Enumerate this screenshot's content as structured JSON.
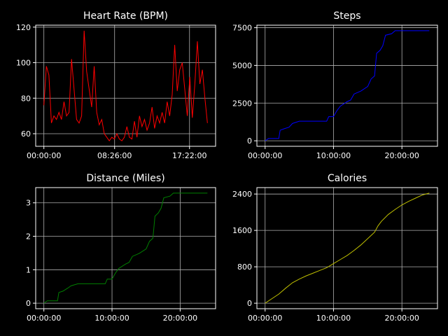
{
  "chart_data": [
    {
      "type": "line",
      "title": "Heart Rate (BPM)",
      "color": "#ff0000",
      "grid": true,
      "x": [
        0,
        0.3,
        0.6,
        0.9,
        1.2,
        1.5,
        1.8,
        2.1,
        2.4,
        2.7,
        3.0,
        3.3,
        3.6,
        3.9,
        4.2,
        4.5,
        4.8,
        5.1,
        5.4,
        5.7,
        6.0,
        6.3,
        6.6,
        6.9,
        7.2,
        7.5,
        7.8,
        8.1,
        8.4,
        8.7,
        9.0,
        9.3,
        9.6,
        9.9,
        10.2,
        10.5,
        10.8,
        11.1,
        11.4,
        11.7,
        12.0,
        12.3,
        12.6,
        12.9,
        13.2,
        13.5,
        13.8,
        14.1,
        14.4,
        14.7,
        15.0,
        15.3,
        15.6,
        15.9,
        16.2,
        16.5,
        16.8,
        17.1,
        17.4,
        17.7,
        18.0,
        18.3,
        18.6,
        18.9,
        19.2,
        19.5
      ],
      "values": [
        76,
        98,
        93,
        66,
        70,
        68,
        72,
        68,
        78,
        70,
        72,
        102,
        85,
        68,
        66,
        70,
        118,
        95,
        85,
        75,
        98,
        72,
        65,
        68,
        60,
        58,
        56,
        58,
        57,
        60,
        57,
        56,
        58,
        64,
        58,
        57,
        67,
        58,
        70,
        64,
        68,
        62,
        66,
        75,
        63,
        70,
        66,
        72,
        66,
        78,
        70,
        82,
        110,
        84,
        96,
        100,
        85,
        70,
        92,
        69,
        88,
        112,
        88,
        96,
        80,
        66
      ],
      "xlim": [
        -0.975,
        20.475
      ],
      "xticks": [
        {
          "value": 0,
          "label": "00:00:00"
        },
        {
          "value": 8.4333,
          "label": "08:26:00"
        },
        {
          "value": 17.3667,
          "label": "17:22:00"
        }
      ],
      "ylim": [
        52.9,
        121.1
      ],
      "yticks": [
        60,
        80,
        100,
        120
      ]
    },
    {
      "type": "line",
      "title": "Steps",
      "color": "#0000ff",
      "grid": true,
      "x": [
        0,
        0.5,
        2,
        2.2,
        2.8,
        3.5,
        4,
        5,
        9,
        9.3,
        10,
        10.5,
        11,
        12,
        12.5,
        13,
        14,
        15,
        15.5,
        16,
        16.3,
        16.8,
        17.2,
        17.6,
        18.5,
        19,
        24
      ],
      "values": [
        0,
        150,
        150,
        700,
        800,
        900,
        1150,
        1300,
        1300,
        1600,
        1600,
        2000,
        2300,
        2600,
        2700,
        3100,
        3300,
        3600,
        4100,
        4300,
        5800,
        6000,
        6300,
        7000,
        7100,
        7300,
        7300
      ],
      "xlim": [
        -1.2,
        25.2
      ],
      "xticks": [
        {
          "value": 0,
          "label": "00:00:00"
        },
        {
          "value": 10,
          "label": "10:00:00"
        },
        {
          "value": 20,
          "label": "20:00:00"
        }
      ],
      "ylim": [
        -365,
        7665
      ],
      "yticks": [
        0,
        2500,
        5000,
        7500
      ]
    },
    {
      "type": "line",
      "title": "Distance (Miles)",
      "color": "#008000",
      "grid": true,
      "x": [
        0,
        0.5,
        2,
        2.2,
        2.8,
        3.5,
        4,
        5,
        9,
        9.3,
        10,
        10.5,
        11,
        12,
        12.5,
        13,
        14,
        15,
        15.5,
        16,
        16.3,
        16.8,
        17.2,
        17.6,
        18.5,
        19,
        24
      ],
      "values": [
        0,
        0.07,
        0.07,
        0.32,
        0.36,
        0.45,
        0.52,
        0.58,
        0.58,
        0.72,
        0.72,
        0.9,
        1.04,
        1.17,
        1.22,
        1.4,
        1.49,
        1.62,
        1.85,
        1.94,
        2.6,
        2.7,
        2.84,
        3.15,
        3.2,
        3.29,
        3.29
      ],
      "xlim": [
        -1.2,
        25.2
      ],
      "xticks": [
        {
          "value": 0,
          "label": "00:00:00"
        },
        {
          "value": 10,
          "label": "10:00:00"
        },
        {
          "value": 20,
          "label": "20:00:00"
        }
      ],
      "ylim": [
        -0.165,
        3.455
      ],
      "yticks": [
        0,
        1,
        2,
        3
      ]
    },
    {
      "type": "line",
      "title": "Calories",
      "color": "#bfbf00",
      "grid": true,
      "x": [
        0,
        1,
        2,
        3,
        4,
        5,
        6,
        7,
        8,
        9,
        10,
        11,
        12,
        13,
        14,
        15,
        16,
        16.5,
        17,
        18,
        19,
        20,
        21,
        22,
        23,
        24
      ],
      "values": [
        0,
        100,
        200,
        330,
        450,
        530,
        600,
        660,
        720,
        780,
        870,
        960,
        1050,
        1160,
        1280,
        1420,
        1560,
        1700,
        1800,
        1950,
        2060,
        2160,
        2240,
        2310,
        2380,
        2420
      ],
      "xlim": [
        -1.2,
        25.2
      ],
      "xticks": [
        {
          "value": 0,
          "label": "00:00:00"
        },
        {
          "value": 10,
          "label": "10:00:00"
        },
        {
          "value": 20,
          "label": "20:00:00"
        }
      ],
      "ylim": [
        -121,
        2541
      ],
      "yticks": [
        0,
        800,
        1600,
        2400
      ]
    }
  ]
}
